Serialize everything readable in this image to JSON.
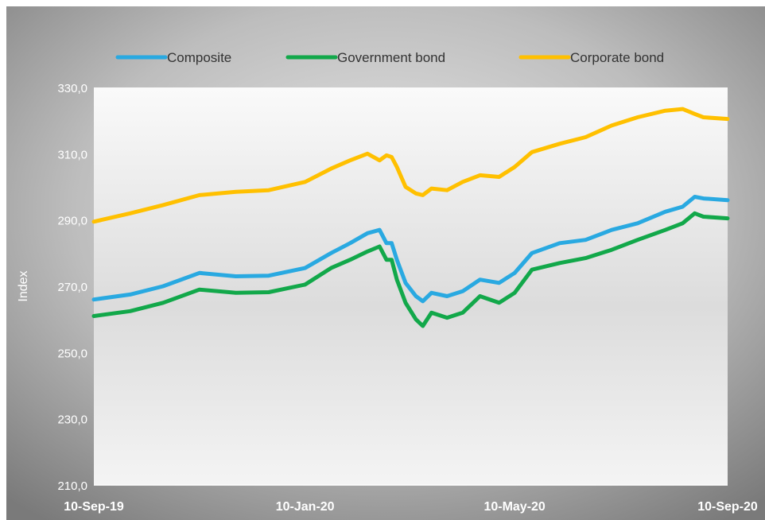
{
  "colors": {
    "composite": "#29a9e1",
    "government": "#12a84a",
    "corporate": "#ffc000",
    "background_light": "#f2f2f2",
    "background_dark": "#7f7f7f",
    "axis_text": "#ffffff",
    "axis_line": "#ffffff"
  },
  "chart_data": {
    "type": "line",
    "title": "",
    "xlabel": "",
    "ylabel": "Index",
    "ylim": [
      210,
      330
    ],
    "yticks": [
      210,
      230,
      250,
      270,
      290,
      310,
      330
    ],
    "ytick_labels": [
      "210,0",
      "230,0",
      "250,0",
      "270,0",
      "290,0",
      "310,0",
      "330,0"
    ],
    "xlim": [
      "2019-09-10",
      "2020-09-10"
    ],
    "xticks": [
      "2019-09-10",
      "2020-01-10",
      "2020-05-10",
      "2020-09-10"
    ],
    "xtick_labels": [
      "10-Sep-19",
      "10-Jan-20",
      "10-May-20",
      "10-Sep-20"
    ],
    "grid": false,
    "legend_position": "top",
    "x": [
      "2019-09-10",
      "2019-10-01",
      "2019-10-20",
      "2019-11-10",
      "2019-12-01",
      "2019-12-20",
      "2020-01-10",
      "2020-01-25",
      "2020-02-05",
      "2020-02-15",
      "2020-02-22",
      "2020-02-26",
      "2020-02-29",
      "2020-03-03",
      "2020-03-08",
      "2020-03-14",
      "2020-03-18",
      "2020-03-23",
      "2020-04-01",
      "2020-04-10",
      "2020-04-20",
      "2020-05-01",
      "2020-05-10",
      "2020-05-20",
      "2020-06-05",
      "2020-06-20",
      "2020-07-05",
      "2020-07-20",
      "2020-08-05",
      "2020-08-15",
      "2020-08-22",
      "2020-08-27",
      "2020-09-10"
    ],
    "series": [
      {
        "name": "Composite",
        "color_key": "composite",
        "values": [
          266,
          267.5,
          270,
          274,
          273,
          273.2,
          275.5,
          280,
          283,
          286,
          287,
          283,
          283,
          278,
          271,
          267,
          265.5,
          268,
          267,
          268.5,
          272,
          271,
          274,
          280,
          283,
          284,
          287,
          289,
          292.5,
          294,
          297,
          296.5,
          296
        ]
      },
      {
        "name": "Government bond",
        "color_key": "government",
        "values": [
          261,
          262.5,
          265,
          269,
          268,
          268.2,
          270.5,
          275.5,
          278,
          280.5,
          282,
          278,
          278,
          272,
          265,
          260,
          258,
          262,
          260.5,
          262,
          267,
          265,
          268,
          275,
          277,
          278.5,
          281,
          284,
          287,
          289,
          292,
          291,
          290.5
        ]
      },
      {
        "name": "Corporate bond",
        "color_key": "corporate",
        "values": [
          289.5,
          292,
          294.5,
          297.5,
          298.5,
          299,
          301.5,
          305.5,
          308,
          310,
          308,
          309.5,
          309,
          306,
          300,
          298,
          297.5,
          299.5,
          299,
          301.5,
          303.5,
          303,
          306,
          310.5,
          313,
          315,
          318.5,
          321,
          323,
          323.5,
          322,
          321,
          320.5
        ]
      }
    ]
  }
}
